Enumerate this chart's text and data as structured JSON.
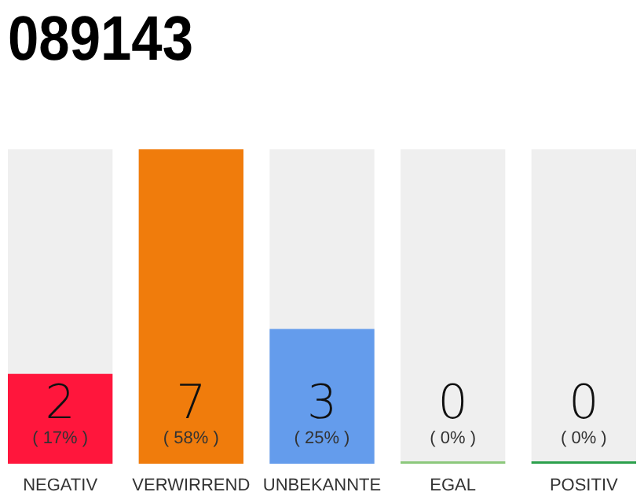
{
  "chart_data": {
    "type": "bar",
    "title": "089143",
    "categories": [
      "NEGATIV",
      "VERWIRREND",
      "UNBEKANNTE",
      "EGAL",
      "POSITIV"
    ],
    "values": [
      2,
      7,
      3,
      0,
      0
    ],
    "colors": [
      "#ff163c",
      "#f07c0c",
      "#649cec",
      "#8cc87c",
      "#2ca04c"
    ],
    "ylim": [
      0,
      7
    ],
    "data_labels": true,
    "annotations": [
      "( 17% )",
      "( 58% )",
      "( 25% )",
      "( 0% )",
      "( 0% )"
    ],
    "tick_labels": "x"
  }
}
